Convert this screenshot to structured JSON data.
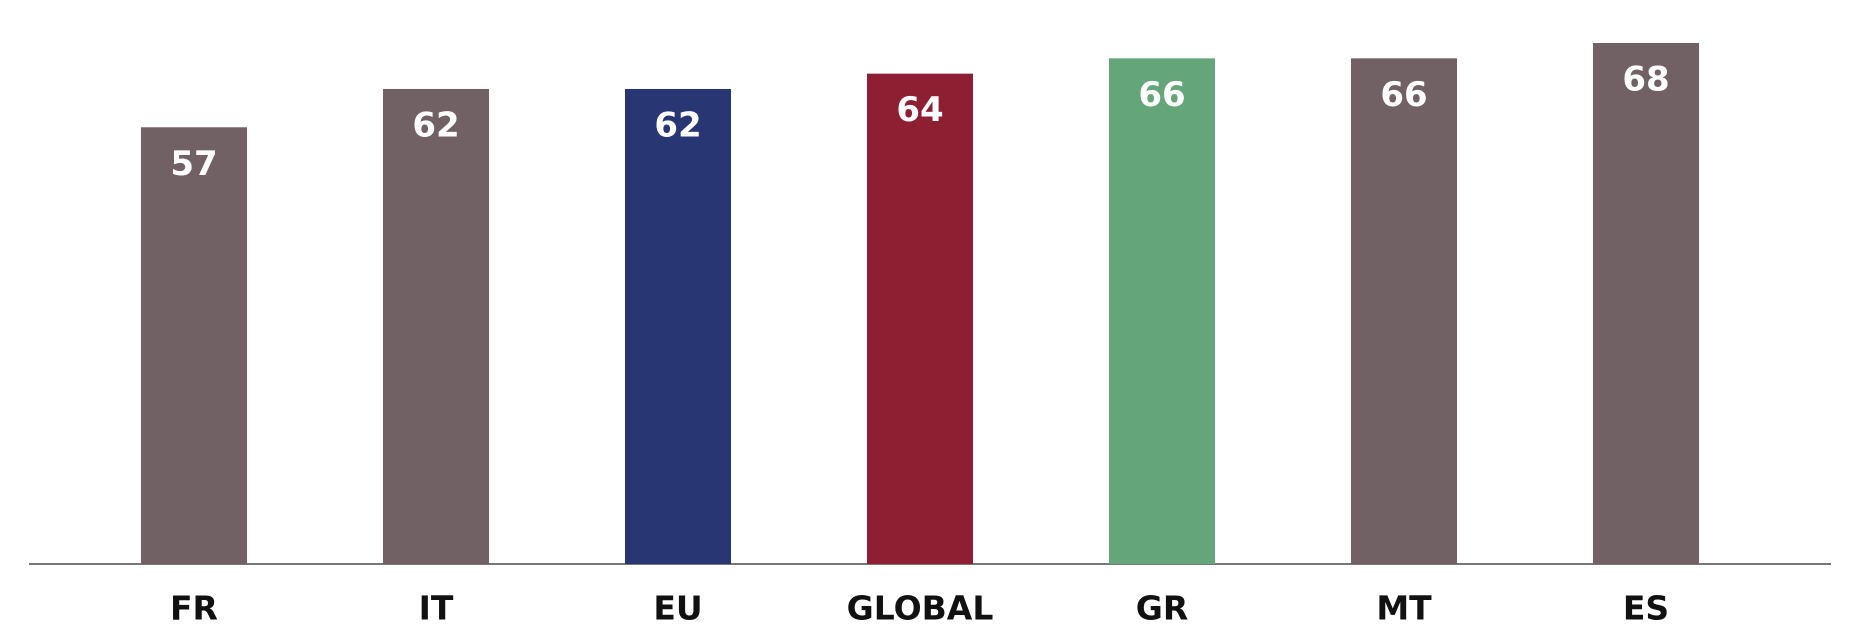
{
  "chart_data": {
    "type": "bar",
    "categories": [
      "FR",
      "IT",
      "EU",
      "GLOBAL",
      "GR",
      "MT",
      "ES"
    ],
    "values": [
      57,
      62,
      62,
      64,
      66,
      66,
      68
    ],
    "colors": [
      "#726164",
      "#726164",
      "#283673",
      "#8e1f33",
      "#64a67a",
      "#726164",
      "#726164"
    ]
  }
}
